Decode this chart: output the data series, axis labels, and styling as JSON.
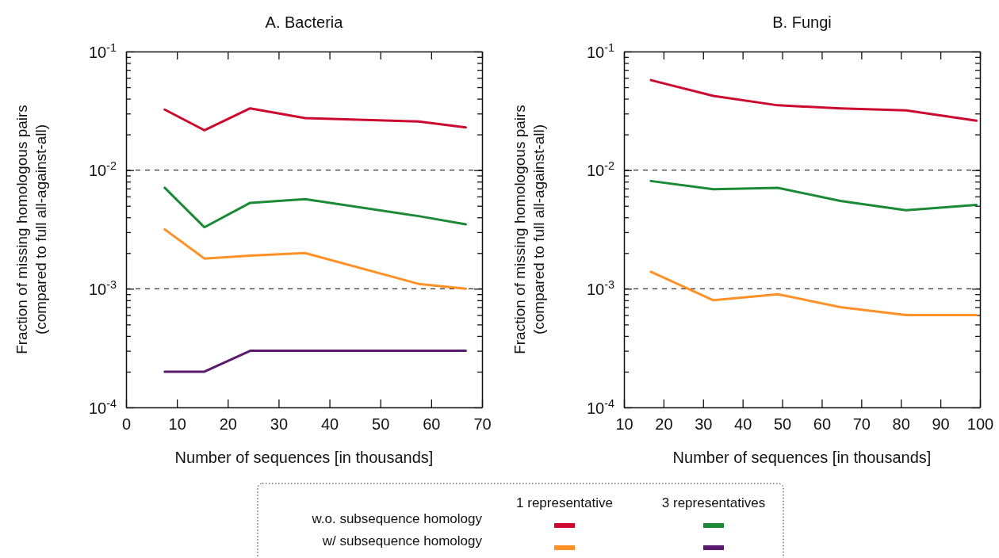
{
  "chart_data": [
    {
      "type": "line",
      "title": "A. Bacteria",
      "xlabel": "Number of sequences [in thousands]",
      "ylabel": "Fraction of missing homologous pairs\n(compared to full all-against-all)",
      "log": "y",
      "line_style": "solid",
      "marker": "none",
      "grid": false,
      "annotations": [
        "1 representative",
        "3 representatives",
        "w.o. subsequence homology",
        "w/ subsequence homology"
      ],
      "x": [
        7.6,
        15.4,
        24.4,
        35.2,
        57.5,
        66.8
      ],
      "xlim": [
        0,
        70
      ],
      "xticks": [
        0,
        10,
        20,
        30,
        40,
        50,
        60,
        70
      ],
      "ylim": [
        0.0001,
        0.1
      ],
      "yticks": [
        {
          "value": 0.0001,
          "label": "10$^{-4}$"
        },
        {
          "value": 0.0002,
          "label": null
        },
        {
          "value": 0.0003,
          "label": null
        },
        {
          "value": 0.0004,
          "label": null
        },
        {
          "value": 0.0005,
          "label": null
        },
        {
          "value": 0.0006,
          "label": null
        },
        {
          "value": 0.0007,
          "label": null
        },
        {
          "value": 0.0008,
          "label": null
        },
        {
          "value": 0.0009,
          "label": null
        },
        {
          "value": 0.001,
          "label": "10$^{-3}$"
        },
        {
          "value": 0.002,
          "label": null
        },
        {
          "value": 0.003,
          "label": null
        },
        {
          "value": 0.004,
          "label": null
        },
        {
          "value": 0.005,
          "label": null
        },
        {
          "value": 0.006,
          "label": null
        },
        {
          "value": 0.007,
          "label": null
        },
        {
          "value": 0.008,
          "label": null
        },
        {
          "value": 0.009,
          "label": null
        },
        {
          "value": 0.01,
          "label": "10$^{-2}$"
        },
        {
          "value": 0.02,
          "label": null
        },
        {
          "value": 0.03,
          "label": null
        },
        {
          "value": 0.04,
          "label": null
        },
        {
          "value": 0.05,
          "label": null
        },
        {
          "value": 0.06,
          "label": null
        },
        {
          "value": 0.07,
          "label": null
        },
        {
          "value": 0.08,
          "label": null
        },
        {
          "value": 0.09,
          "label": null
        },
        {
          "value": 0.1,
          "label": "10$^{-1}$"
        }
      ],
      "ref_lines": [
        {
          "axis": "y",
          "value": 0.01,
          "color": "#333333",
          "line_style": "dashed"
        },
        {
          "axis": "y",
          "value": 0.001,
          "color": "#333333",
          "line_style": "dashed"
        }
      ],
      "series": [
        {
          "color": "#cc0a2f",
          "values": [
            0.0324,
            0.0217,
            0.0332,
            0.0275,
            0.0257,
            0.0229
          ]
        },
        {
          "color": "#1a8a35",
          "values": [
            0.0071,
            0.0033,
            0.0053,
            0.0057,
            0.0041,
            0.0035
          ]
        },
        {
          "color": "#ff9126",
          "values": [
            0.00317,
            0.0018,
            0.0019,
            0.002,
            0.0011,
            0.001
          ]
        },
        {
          "color": "#5a1a6e",
          "values": [
            0.0002,
            0.0002,
            0.0003,
            0.0003,
            0.0003,
            0.0003
          ]
        }
      ]
    },
    {
      "type": "line",
      "title": "B. Fungi",
      "xlabel": "Number of sequences [in thousands]",
      "ylabel": "Fraction of missing homologous pairs\n(compared to full all-against-all)",
      "log": "y",
      "line_style": "solid",
      "marker": "none",
      "grid": false,
      "x": [
        16.8,
        32.6,
        48.9,
        64.7,
        81.3,
        99.1
      ],
      "xlim": [
        10,
        100
      ],
      "xticks": [
        10,
        20,
        30,
        40,
        50,
        60,
        70,
        80,
        90,
        100
      ],
      "ylim": [
        0.0001,
        0.1
      ],
      "yticks": [
        {
          "value": 0.0001,
          "label": "10$^{-4}$"
        },
        {
          "value": 0.0002,
          "label": null
        },
        {
          "value": 0.0003,
          "label": null
        },
        {
          "value": 0.0004,
          "label": null
        },
        {
          "value": 0.0005,
          "label": null
        },
        {
          "value": 0.0006,
          "label": null
        },
        {
          "value": 0.0007,
          "label": null
        },
        {
          "value": 0.0008,
          "label": null
        },
        {
          "value": 0.0009,
          "label": null
        },
        {
          "value": 0.001,
          "label": "10$^{-3}$"
        },
        {
          "value": 0.002,
          "label": null
        },
        {
          "value": 0.003,
          "label": null
        },
        {
          "value": 0.004,
          "label": null
        },
        {
          "value": 0.005,
          "label": null
        },
        {
          "value": 0.006,
          "label": null
        },
        {
          "value": 0.007,
          "label": null
        },
        {
          "value": 0.008,
          "label": null
        },
        {
          "value": 0.009,
          "label": null
        },
        {
          "value": 0.01,
          "label": "10$^{-2}$"
        },
        {
          "value": 0.02,
          "label": null
        },
        {
          "value": 0.03,
          "label": null
        },
        {
          "value": 0.04,
          "label": null
        },
        {
          "value": 0.05,
          "label": null
        },
        {
          "value": 0.06,
          "label": null
        },
        {
          "value": 0.07,
          "label": null
        },
        {
          "value": 0.08,
          "label": null
        },
        {
          "value": 0.09,
          "label": null
        },
        {
          "value": 0.1,
          "label": "10$^{-1}$"
        }
      ],
      "ref_lines": [
        {
          "axis": "y",
          "value": 0.01,
          "color": "#333333",
          "line_style": "dashed"
        },
        {
          "axis": "y",
          "value": 0.001,
          "color": "#333333",
          "line_style": "dashed"
        }
      ],
      "series": [
        {
          "color": "#cc0a2f",
          "values": [
            0.0574,
            0.0423,
            0.0352,
            0.0332,
            0.0319,
            0.0261
          ]
        },
        {
          "color": "#1a8a35",
          "values": [
            0.0081,
            0.0069,
            0.0071,
            0.0055,
            0.0046,
            0.0051
          ]
        },
        {
          "color": "#ff9126",
          "values": [
            0.00139,
            0.0008,
            0.0009,
            0.0007,
            0.0006,
            0.0006
          ]
        }
      ]
    }
  ]
}
